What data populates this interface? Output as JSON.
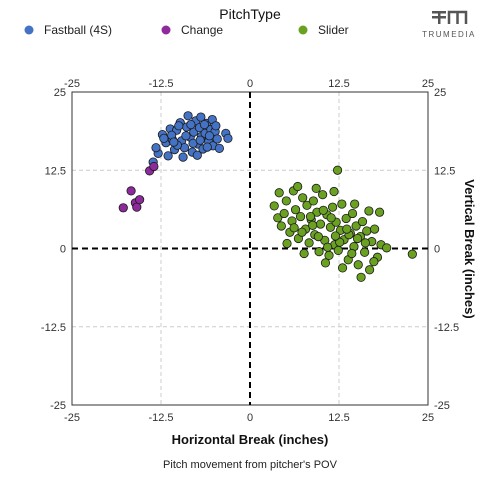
{
  "brand": {
    "name": "TRUMEDIA",
    "logo_icon": "trumedia-logo-icon"
  },
  "caption": "Pitch movement from pitcher's POV",
  "chart_data": {
    "type": "scatter",
    "title": "",
    "legend_title": "PitchType",
    "legend_position": "top",
    "xlabel": "Horizontal Break (inches)",
    "ylabel": "Vertical Break (inches)",
    "xlim": [
      -25,
      25
    ],
    "ylim": [
      -25,
      25
    ],
    "xticks": [
      "-25",
      "-12.5",
      "0",
      "12.5",
      "25"
    ],
    "yticks": [
      "25",
      "12.5",
      "0",
      "-12.5",
      "-25"
    ],
    "grid": true,
    "zero_lines": "dashed",
    "series": [
      {
        "name": "Fastball (4S)",
        "color": "#4472C4",
        "points": [
          [
            -12.3,
            18.2
          ],
          [
            -11.8,
            16.9
          ],
          [
            -11.2,
            19.1
          ],
          [
            -10.9,
            17.4
          ],
          [
            -10.6,
            15.8
          ],
          [
            -10.3,
            18.9
          ],
          [
            -9.8,
            20.1
          ],
          [
            -9.6,
            17.2
          ],
          [
            -9.2,
            16.1
          ],
          [
            -8.9,
            19.4
          ],
          [
            -8.7,
            21.2
          ],
          [
            -8.4,
            17.8
          ],
          [
            -8.1,
            15.4
          ],
          [
            -7.9,
            18.6
          ],
          [
            -7.6,
            20.4
          ],
          [
            -7.3,
            16.7
          ],
          [
            -7.1,
            19.3
          ],
          [
            -6.8,
            17.9
          ],
          [
            -6.6,
            15.9
          ],
          [
            -6.3,
            18.4
          ],
          [
            -6.1,
            20.0
          ],
          [
            -5.8,
            17.1
          ],
          [
            -5.5,
            19.0
          ],
          [
            -5.2,
            16.4
          ],
          [
            -4.9,
            18.7
          ],
          [
            -4.6,
            17.5
          ],
          [
            -3.4,
            18.4
          ],
          [
            -3.1,
            17.6
          ],
          [
            -12.9,
            15.2
          ],
          [
            -11.5,
            14.8
          ],
          [
            -10.2,
            16.5
          ],
          [
            -9.4,
            14.6
          ],
          [
            -8.3,
            19.8
          ],
          [
            -7.4,
            14.9
          ],
          [
            -6.9,
            21.0
          ],
          [
            -6.0,
            16.2
          ],
          [
            -5.3,
            20.6
          ],
          [
            -4.3,
            16.0
          ],
          [
            -13.6,
            13.8
          ],
          [
            -12.1,
            17.6
          ],
          [
            -11.0,
            18.1
          ],
          [
            -10.0,
            19.6
          ],
          [
            -9.0,
            18.0
          ],
          [
            -8.0,
            16.8
          ],
          [
            -7.0,
            17.3
          ],
          [
            -6.4,
            19.8
          ],
          [
            -5.7,
            18.0
          ],
          [
            -4.8,
            19.6
          ],
          [
            -13.2,
            16.1
          ],
          [
            -10.7,
            17.0
          ]
        ]
      },
      {
        "name": "Change",
        "color": "#8E2A9C",
        "points": [
          [
            -17.8,
            6.5
          ],
          [
            -16.7,
            9.2
          ],
          [
            -16.1,
            7.3
          ],
          [
            -15.9,
            6.6
          ],
          [
            -15.5,
            7.8
          ],
          [
            -14.1,
            12.4
          ],
          [
            -13.5,
            13.1
          ]
        ]
      },
      {
        "name": "Slider",
        "color": "#6AA121",
        "points": [
          [
            3.4,
            6.8
          ],
          [
            3.9,
            4.9
          ],
          [
            4.4,
            3.6
          ],
          [
            4.8,
            5.6
          ],
          [
            5.1,
            7.6
          ],
          [
            5.6,
            2.6
          ],
          [
            5.9,
            4.4
          ],
          [
            6.1,
            9.2
          ],
          [
            6.4,
            6.2
          ],
          [
            6.8,
            1.6
          ],
          [
            7.1,
            5.1
          ],
          [
            7.4,
            8.1
          ],
          [
            7.8,
            3.1
          ],
          [
            8.0,
            6.9
          ],
          [
            8.3,
            0.9
          ],
          [
            8.6,
            4.6
          ],
          [
            8.9,
            7.6
          ],
          [
            9.1,
            2.2
          ],
          [
            9.4,
            5.8
          ],
          [
            9.7,
            -0.5
          ],
          [
            9.9,
            3.9
          ],
          [
            10.2,
            8.6
          ],
          [
            10.5,
            1.3
          ],
          [
            10.8,
            5.4
          ],
          [
            11.1,
            -1.1
          ],
          [
            11.3,
            3.4
          ],
          [
            11.6,
            6.6
          ],
          [
            11.9,
            0.6
          ],
          [
            12.1,
            4.2
          ],
          [
            12.4,
            -0.3
          ],
          [
            12.7,
            2.9
          ],
          [
            12.9,
            7.1
          ],
          [
            13.2,
            1.4
          ],
          [
            13.5,
            4.8
          ],
          [
            13.8,
            -1.8
          ],
          [
            14.1,
            2.4
          ],
          [
            14.4,
            5.6
          ],
          [
            14.6,
            0.3
          ],
          [
            14.9,
            3.6
          ],
          [
            15.2,
            -2.6
          ],
          [
            15.5,
            1.9
          ],
          [
            15.8,
            4.3
          ],
          [
            16.1,
            -0.6
          ],
          [
            16.4,
            2.8
          ],
          [
            16.8,
            -3.4
          ],
          [
            17.1,
            1.1
          ],
          [
            17.5,
            3.1
          ],
          [
            17.9,
            -1.4
          ],
          [
            18.4,
            0.6
          ],
          [
            19.2,
            0.1
          ],
          [
            5.2,
            0.8
          ],
          [
            6.7,
            9.9
          ],
          [
            7.6,
            -0.8
          ],
          [
            9.3,
            9.6
          ],
          [
            10.6,
            -2.3
          ],
          [
            11.8,
            9.1
          ],
          [
            13.0,
            -3.1
          ],
          [
            14.7,
            7.1
          ],
          [
            15.6,
            -4.6
          ],
          [
            16.7,
            6.0
          ],
          [
            12.3,
            12.5
          ],
          [
            18.2,
            5.8
          ],
          [
            22.8,
            -0.9
          ],
          [
            4.1,
            8.9
          ],
          [
            8.8,
            3.7
          ],
          [
            10.3,
            6.1
          ],
          [
            12.6,
            1.0
          ],
          [
            13.9,
            2.2
          ],
          [
            14.3,
            -0.8
          ],
          [
            11.4,
            4.9
          ],
          [
            9.6,
            1.9
          ],
          [
            7.3,
            2.6
          ],
          [
            16.2,
            0.9
          ],
          [
            15.1,
            1.6
          ],
          [
            13.6,
            3.1
          ],
          [
            12.0,
            2.0
          ],
          [
            10.9,
            0.2
          ],
          [
            8.5,
            5.1
          ],
          [
            6.2,
            3.3
          ],
          [
            17.4,
            -2.1
          ]
        ]
      }
    ]
  }
}
